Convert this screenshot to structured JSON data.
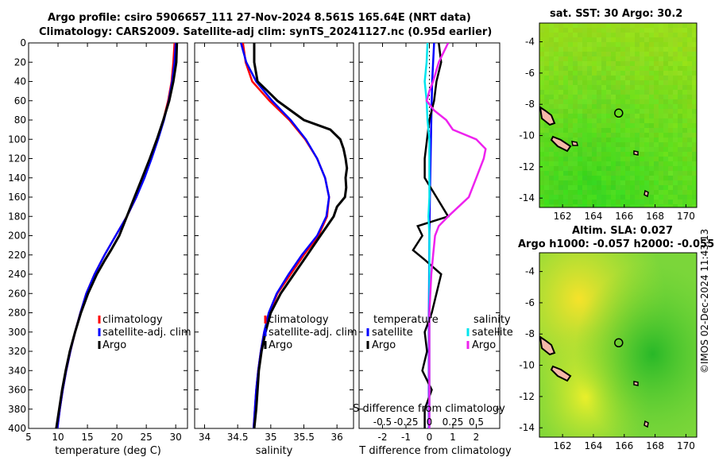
{
  "figure": {
    "title_line1": "Argo profile: csiro 5906657_111 27-Nov-2024 8.561S 165.64E (NRT data)",
    "title_line2": "Climatology: CARS2009. Satellite-adj clim: synTS_20241127.nc (0.95d earlier)",
    "sst_title": "sat. SST: 30 Argo: 30.2",
    "sla_title_line1": "Altim. SLA: 0.027",
    "sla_title_line2": "Argo h1000: -0.057 h2000: -0.055",
    "credit": "©IMOS 02-Dec-2024 11:43:13",
    "colors": {
      "climatology": "#ff0000",
      "satellite": "#0000ff",
      "argo": "#000000",
      "sat_salinity": "#00e5ee",
      "argo_salinity": "#ee22ee",
      "land": "#f5b8a8"
    }
  },
  "chart_data": [
    {
      "type": "line",
      "name": "temperature-profile",
      "xlabel": "temperature (deg C)",
      "ylabel": "",
      "xlim": [
        5,
        32
      ],
      "ylim": [
        400,
        0
      ],
      "xticks": [
        5,
        10,
        15,
        20,
        25,
        30
      ],
      "yticks": [
        0,
        20,
        40,
        60,
        80,
        100,
        120,
        140,
        160,
        180,
        200,
        220,
        240,
        260,
        280,
        300,
        320,
        340,
        360,
        380,
        400
      ],
      "legend": {
        "position": "lower-right",
        "entries": [
          "climatology",
          "satellite-adj. clim",
          "Argo"
        ]
      },
      "series": [
        {
          "name": "climatology",
          "depth": [
            0,
            20,
            40,
            60,
            80,
            100,
            120,
            140,
            160,
            180,
            200,
            220,
            240,
            260,
            280,
            300,
            320,
            340,
            360,
            380,
            400
          ],
          "values": [
            29.8,
            29.6,
            29.3,
            28.7,
            27.9,
            26.9,
            25.8,
            24.6,
            23.3,
            21.7,
            19.8,
            17.9,
            16.2,
            14.8,
            13.8,
            12.9,
            12.1,
            11.4,
            10.8,
            10.3,
            9.9
          ]
        },
        {
          "name": "satellite-adj. clim",
          "depth": [
            0,
            20,
            40,
            60,
            80,
            100,
            120,
            140,
            160,
            180,
            200,
            220,
            240,
            260,
            280,
            300,
            320,
            340,
            360,
            380,
            400
          ],
          "values": [
            30.0,
            29.8,
            29.4,
            28.8,
            28.0,
            27.0,
            25.9,
            24.7,
            23.3,
            21.7,
            19.8,
            17.9,
            16.2,
            14.8,
            13.8,
            12.9,
            12.1,
            11.4,
            10.8,
            10.3,
            9.9
          ]
        },
        {
          "name": "Argo",
          "depth": [
            0,
            20,
            40,
            60,
            80,
            100,
            120,
            140,
            160,
            180,
            200,
            215,
            225,
            240,
            260,
            280,
            300,
            320,
            340,
            360,
            380,
            400
          ],
          "values": [
            30.2,
            30.1,
            29.6,
            28.9,
            27.9,
            26.8,
            25.6,
            24.3,
            23.0,
            21.7,
            20.4,
            19.0,
            18.0,
            16.6,
            15.1,
            13.9,
            12.9,
            12.0,
            11.3,
            10.7,
            10.2,
            9.7
          ]
        }
      ]
    },
    {
      "type": "line",
      "name": "salinity-profile",
      "xlabel": "salinity",
      "ylabel": "",
      "xlim": [
        33.85,
        36.25
      ],
      "ylim": [
        400,
        0
      ],
      "xticks": [
        34,
        34.5,
        35,
        35.5,
        36
      ],
      "legend": {
        "position": "lower-right",
        "entries": [
          "climatology",
          "satellite-adj. clim",
          "Argo"
        ]
      },
      "series": [
        {
          "name": "climatology",
          "depth": [
            0,
            20,
            40,
            60,
            80,
            100,
            120,
            140,
            160,
            180,
            200,
            220,
            240,
            260,
            280,
            300,
            320,
            340,
            360,
            380,
            400
          ],
          "values": [
            34.58,
            34.62,
            34.72,
            34.98,
            35.28,
            35.52,
            35.7,
            35.82,
            35.88,
            35.85,
            35.72,
            35.5,
            35.3,
            35.1,
            34.98,
            34.9,
            34.85,
            34.81,
            34.78,
            34.76,
            34.74
          ]
        },
        {
          "name": "satellite-adj. clim",
          "depth": [
            0,
            20,
            40,
            60,
            80,
            100,
            120,
            140,
            160,
            180,
            200,
            220,
            240,
            260,
            280,
            300,
            320,
            340,
            360,
            380,
            400
          ],
          "values": [
            34.55,
            34.63,
            34.78,
            35.02,
            35.3,
            35.53,
            35.7,
            35.82,
            35.88,
            35.84,
            35.7,
            35.47,
            35.27,
            35.09,
            34.97,
            34.9,
            34.85,
            34.81,
            34.78,
            34.76,
            34.74
          ]
        },
        {
          "name": "Argo",
          "depth": [
            0,
            20,
            40,
            50,
            60,
            80,
            90,
            100,
            110,
            120,
            130,
            140,
            150,
            160,
            170,
            180,
            190,
            200,
            220,
            240,
            260,
            280,
            300,
            320,
            340,
            360,
            380,
            400
          ],
          "values": [
            34.75,
            34.75,
            34.8,
            34.95,
            35.1,
            35.5,
            35.9,
            36.05,
            36.1,
            36.13,
            36.15,
            36.13,
            36.14,
            36.12,
            36.0,
            35.95,
            35.85,
            35.75,
            35.55,
            35.35,
            35.15,
            35.0,
            34.92,
            34.86,
            34.82,
            34.8,
            34.78,
            34.75
          ]
        }
      ]
    },
    {
      "type": "line",
      "name": "difference-profile",
      "xlabel": "T difference from climatology",
      "x2label": "S difference from climatology",
      "xlim": [
        -3,
        3
      ],
      "ylim": [
        400,
        0
      ],
      "xticks": [
        -2,
        -1,
        0,
        1,
        2
      ],
      "x2ticks": [
        "-0.5",
        "-0.25",
        "0",
        "0.25",
        "0.5"
      ],
      "legend": {
        "position": "lower",
        "groups": [
          {
            "title": "temperature",
            "entries": [
              "satellite",
              "Argo"
            ]
          },
          {
            "title": "salinity",
            "entries": [
              "satellite",
              "Argo"
            ]
          }
        ]
      },
      "series": [
        {
          "name": "temperature satellite",
          "depth": [
            0,
            40,
            80,
            120,
            160,
            200,
            240,
            280,
            320,
            360,
            400
          ],
          "values": [
            0.2,
            0.12,
            0.08,
            0.05,
            0.02,
            0.0,
            -0.01,
            -0.02,
            -0.02,
            -0.02,
            -0.02
          ]
        },
        {
          "name": "temperature Argo",
          "depth": [
            0,
            20,
            40,
            60,
            80,
            100,
            120,
            140,
            160,
            180,
            190,
            200,
            215,
            225,
            240,
            260,
            280,
            300,
            320,
            340,
            360,
            380,
            400
          ],
          "values": [
            0.4,
            0.5,
            0.3,
            0.2,
            0.0,
            -0.1,
            -0.2,
            -0.2,
            0.3,
            0.8,
            -0.5,
            -0.3,
            -0.7,
            -0.2,
            0.5,
            0.3,
            0.1,
            -0.2,
            -0.1,
            -0.3,
            0.1,
            -0.2,
            -0.2
          ]
        },
        {
          "name": "salinity satellite",
          "depth": [
            0,
            20,
            40,
            60,
            80,
            100,
            120,
            140,
            160,
            180,
            200,
            240,
            280,
            320,
            360,
            400
          ],
          "values": [
            -0.02,
            -0.03,
            -0.05,
            -0.03,
            -0.02,
            0.0,
            0.0,
            0.0,
            0.0,
            -0.01,
            0.0,
            0.0,
            0.0,
            0.0,
            0.0,
            0.0
          ]
        },
        {
          "name": "salinity Argo",
          "depth": [
            0,
            20,
            40,
            50,
            60,
            70,
            80,
            90,
            100,
            110,
            120,
            140,
            160,
            180,
            190,
            200,
            220,
            240,
            260,
            280,
            300,
            320,
            340,
            360,
            380,
            400
          ],
          "values": [
            0.2,
            0.1,
            0.04,
            0.0,
            -0.03,
            0.05,
            0.18,
            0.25,
            0.5,
            0.6,
            0.58,
            0.5,
            0.42,
            0.2,
            0.1,
            0.06,
            0.04,
            0.02,
            0.01,
            0.0,
            0.0,
            0.0,
            0.0,
            0.0,
            0.0,
            0.0
          ]
        }
      ]
    },
    {
      "type": "heatmap",
      "name": "sst-map",
      "title": "sat. SST: 30 Argo: 30.2",
      "xlim": [
        160.5,
        170.7
      ],
      "ylim": [
        -14.6,
        -2.8
      ],
      "xticks": [
        162,
        164,
        166,
        168,
        170
      ],
      "yticks": [
        -4,
        -6,
        -8,
        -10,
        -12,
        -14
      ],
      "argo_position": [
        165.64,
        -8.561
      ]
    },
    {
      "type": "heatmap",
      "name": "sla-map",
      "title": "Altim. SLA: 0.027",
      "xlim": [
        160.5,
        170.7
      ],
      "ylim": [
        -14.6,
        -2.8
      ],
      "xticks": [
        162,
        164,
        166,
        168,
        170
      ],
      "yticks": [
        -4,
        -6,
        -8,
        -10,
        -12,
        -14
      ],
      "argo_position": [
        165.64,
        -8.561
      ]
    }
  ]
}
